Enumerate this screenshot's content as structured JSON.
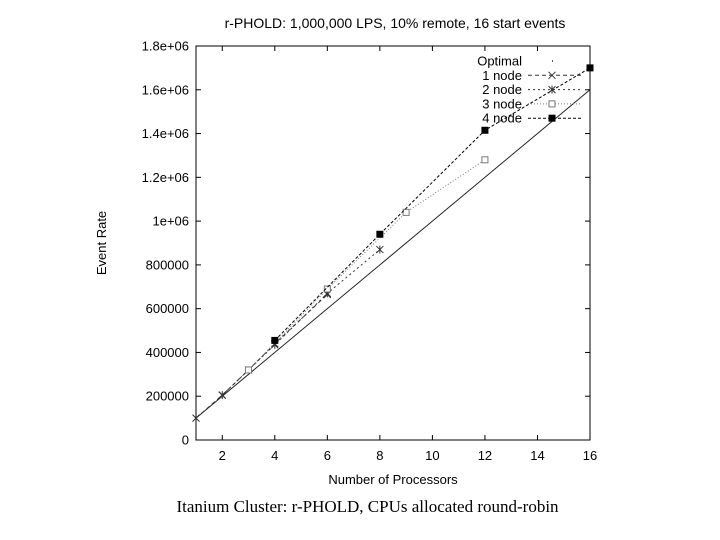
{
  "caption": "Itanium Cluster: r-PHOLD, CPUs allocated round-robin",
  "chart_data": {
    "type": "line",
    "title": "r-PHOLD: 1,000,000 LPS, 10% remote, 16 start events",
    "xlabel": "Number of Processors",
    "ylabel": "Event Rate",
    "xlim": [
      1,
      16
    ],
    "ylim": [
      0,
      1800000
    ],
    "x_ticks": [
      2,
      4,
      6,
      8,
      10,
      12,
      14,
      16
    ],
    "x_tick_labels": [
      "2",
      "4",
      "6",
      "8",
      "10",
      "12",
      "14",
      "16"
    ],
    "y_ticks": [
      0,
      200000,
      400000,
      600000,
      800000,
      1000000,
      1200000,
      1400000,
      1600000,
      1800000
    ],
    "y_tick_labels": [
      "0",
      "200000",
      "400000",
      "600000",
      "800000",
      "1e+06",
      "1.2e+06",
      "1.4e+06",
      "1.6e+06",
      "1.8e+06"
    ],
    "grid": false,
    "legend_position": "top-right",
    "series": [
      {
        "name": "Optimal",
        "marker": "none",
        "dash": "solid",
        "color": "#222222",
        "x": [
          1,
          16
        ],
        "y": [
          100000,
          1600000
        ]
      },
      {
        "name": "1 node",
        "marker": "x",
        "dash": "4,3",
        "color": "#333333",
        "x": [
          1,
          2,
          3,
          4,
          6
        ],
        "y": [
          100000,
          205000,
          320000,
          440000,
          665000
        ]
      },
      {
        "name": "2 node",
        "marker": "star",
        "dash": "2,3",
        "color": "#333333",
        "x": [
          2,
          4,
          6,
          8
        ],
        "y": [
          205000,
          435000,
          670000,
          870000
        ]
      },
      {
        "name": "3 node",
        "marker": "square-open",
        "dash": "1,2",
        "color": "#777777",
        "x": [
          3,
          6,
          9,
          12
        ],
        "y": [
          320000,
          690000,
          1040000,
          1280000
        ]
      },
      {
        "name": "4 node",
        "marker": "square-filled",
        "dash": "3,2",
        "color": "#000000",
        "x": [
          4,
          8,
          12,
          16
        ],
        "y": [
          455000,
          940000,
          1415000,
          1700000
        ]
      }
    ]
  }
}
